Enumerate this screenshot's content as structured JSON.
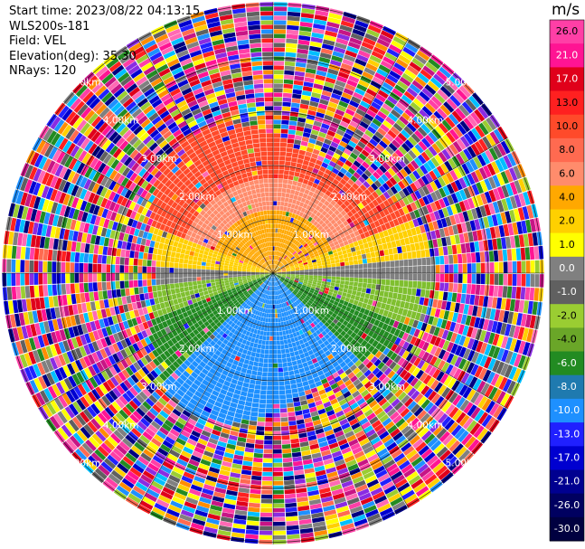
{
  "info": {
    "start_time": "Start time: 2023/08/22 04:13:15",
    "instrument": "WLS200s-181",
    "field": "Field: VEL",
    "elevation": "Elevation(deg): 35.30",
    "nrays": "NRays: 120"
  },
  "chart_data": {
    "type": "heatmap",
    "projection": "polar-ppi",
    "rays": 120,
    "range_rings_km": [
      1,
      2,
      3,
      4,
      5
    ],
    "ring_labels": {
      "1": "1.00km",
      "2": "2.00km",
      "3": "3.00km",
      "4": "4.00km",
      "5": "5.00km"
    },
    "field_layers": [
      {
        "region": "north",
        "value_range_ms": [
          6,
          17
        ],
        "color_hint": "#f05a28"
      },
      {
        "region": "near-north",
        "value_range_ms": [
          1,
          4
        ],
        "color_hint": "#ffd700"
      },
      {
        "region": "east-west axis",
        "value_range_ms": [
          -1,
          1
        ],
        "color_hint": "#808080"
      },
      {
        "region": "near-south",
        "value_range_ms": [
          -4,
          -1
        ],
        "color_hint": "#7fbf2f"
      },
      {
        "region": "south",
        "value_range_ms": [
          -10,
          -4
        ],
        "color_hint": "#2a7fc8"
      }
    ],
    "colorbar": {
      "unit": "m/s",
      "labels": [
        "26.0",
        "21.0",
        "17.0",
        "13.0",
        "10.0",
        "8.0",
        "6.0",
        "4.0",
        "2.0",
        "1.0",
        "0.0",
        "-1.0",
        "-2.0",
        "-4.0",
        "-6.0",
        "-8.0",
        "-10.0",
        "-13.0",
        "-17.0",
        "-21.0",
        "-26.0",
        "-30.0"
      ],
      "colors": [
        "#ff3fa6",
        "#ff1493",
        "#e0001a",
        "#ff2020",
        "#ff4a2a",
        "#ff6a50",
        "#ff8c6c",
        "#ffa800",
        "#ffd000",
        "#ffff00",
        "#808080",
        "#606060",
        "#9acd32",
        "#6aa628",
        "#228b22",
        "#1f7aaf",
        "#1e90ff",
        "#2020ff",
        "#0000d0",
        "#000090",
        "#000060",
        "#000040"
      ]
    },
    "noise_palette": [
      "#ff1493",
      "#ff3fa6",
      "#e0001a",
      "#ff2020",
      "#ff6a50",
      "#ff8c00",
      "#ffd000",
      "#ffff00",
      "#9acd32",
      "#228b22",
      "#1e90ff",
      "#2020ff",
      "#0000d0",
      "#000080",
      "#8a2be2",
      "#808080",
      "#606060",
      "#00bfff",
      "#ff69b4",
      "#c71585"
    ]
  }
}
